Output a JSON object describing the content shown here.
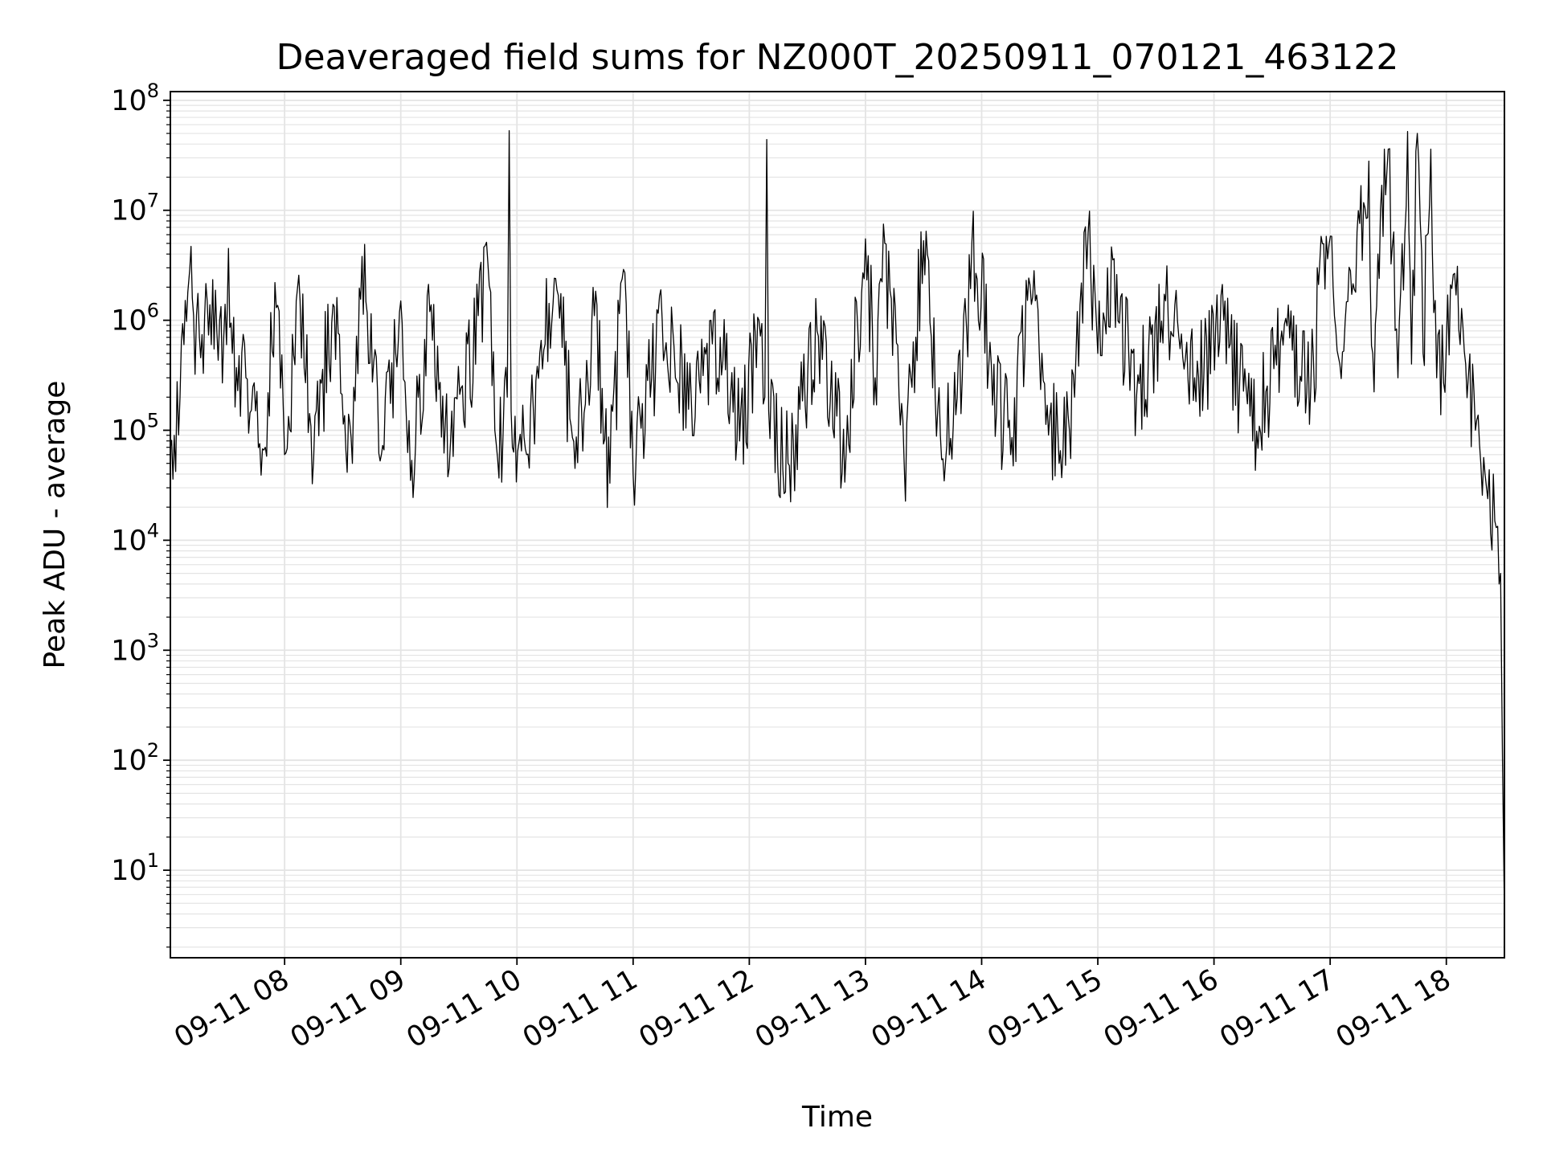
{
  "chart_data": {
    "type": "line",
    "title": "Deaveraged field sums for NZ000T_20250911_070121_463122",
    "xlabel": "Time",
    "ylabel": "Peak ADU - average",
    "yscale": "log",
    "ylim": [
      1.6,
      120000000
    ],
    "xlim": [
      "2025-09-11 07:01",
      "2025-09-11 18:30"
    ],
    "grid": true,
    "line_color": "#000000",
    "grid_color": "#e4e4e4",
    "x_ticks": [
      {
        "t": "2025-09-11 08:00",
        "label": "09-11 08"
      },
      {
        "t": "2025-09-11 09:00",
        "label": "09-11 09"
      },
      {
        "t": "2025-09-11 10:00",
        "label": "09-11 10"
      },
      {
        "t": "2025-09-11 11:00",
        "label": "09-11 11"
      },
      {
        "t": "2025-09-11 12:00",
        "label": "09-11 12"
      },
      {
        "t": "2025-09-11 13:00",
        "label": "09-11 13"
      },
      {
        "t": "2025-09-11 14:00",
        "label": "09-11 14"
      },
      {
        "t": "2025-09-11 15:00",
        "label": "09-11 15"
      },
      {
        "t": "2025-09-11 16:00",
        "label": "09-11 16"
      },
      {
        "t": "2025-09-11 17:00",
        "label": "09-11 17"
      },
      {
        "t": "2025-09-11 18:00",
        "label": "09-11 18"
      }
    ],
    "y_ticks": [
      {
        "value": 10,
        "base": "10",
        "exp": "1"
      },
      {
        "value": 100,
        "base": "10",
        "exp": "2"
      },
      {
        "value": 1000,
        "base": "10",
        "exp": "3"
      },
      {
        "value": 10000,
        "base": "10",
        "exp": "4"
      },
      {
        "value": 100000,
        "base": "10",
        "exp": "5"
      },
      {
        "value": 1000000,
        "base": "10",
        "exp": "6"
      },
      {
        "value": 10000000,
        "base": "10",
        "exp": "7"
      },
      {
        "value": 100000000,
        "base": "10",
        "exp": "8"
      }
    ],
    "series": [
      {
        "points": [
          [
            "2025-09-11 07:01",
            70000
          ],
          [
            "2025-09-11 07:03",
            90000
          ],
          [
            "2025-09-11 07:06",
            200000
          ],
          [
            "2025-09-11 07:08",
            600000
          ],
          [
            "2025-09-11 07:10",
            1800000
          ],
          [
            "2025-09-11 07:11",
            2900000
          ],
          [
            "2025-09-11 07:13",
            1100000
          ],
          [
            "2025-09-11 07:16",
            700000
          ],
          [
            "2025-09-11 07:20",
            1500000
          ],
          [
            "2025-09-11 07:25",
            800000
          ],
          [
            "2025-09-11 07:30",
            600000
          ],
          [
            "2025-09-11 07:31",
            4500000
          ],
          [
            "2025-09-11 07:33",
            500000
          ],
          [
            "2025-09-11 07:40",
            300000
          ],
          [
            "2025-09-11 07:45",
            150000
          ],
          [
            "2025-09-11 07:50",
            70000
          ],
          [
            "2025-09-11 07:55",
            2200000
          ],
          [
            "2025-09-11 08:00",
            60000
          ],
          [
            "2025-09-11 08:08",
            1500000
          ],
          [
            "2025-09-11 08:15",
            55000
          ],
          [
            "2025-09-11 08:25",
            1400000
          ],
          [
            "2025-09-11 08:35",
            50000
          ],
          [
            "2025-09-11 08:40",
            3800000
          ],
          [
            "2025-09-11 08:50",
            60000
          ],
          [
            "2025-09-11 09:00",
            1500000
          ],
          [
            "2025-09-11 09:05",
            35000
          ],
          [
            "2025-09-11 09:15",
            1200000
          ],
          [
            "2025-09-11 09:25",
            45000
          ],
          [
            "2025-09-11 09:40",
            1100000
          ],
          [
            "2025-09-11 09:45",
            3300000
          ],
          [
            "2025-09-11 09:50",
            55000
          ],
          [
            "2025-09-11 09:55",
            200000
          ],
          [
            "2025-09-11 09:56",
            53000000
          ],
          [
            "2025-09-11 09:57",
            150000
          ],
          [
            "2025-09-11 10:05",
            60000
          ],
          [
            "2025-09-11 10:20",
            2400000
          ],
          [
            "2025-09-11 10:30",
            45000
          ],
          [
            "2025-09-11 10:40",
            1100000
          ],
          [
            "2025-09-11 10:48",
            33000
          ],
          [
            "2025-09-11 10:55",
            2900000
          ],
          [
            "2025-09-11 11:00",
            40000
          ],
          [
            "2025-09-11 11:15",
            1000000
          ],
          [
            "2025-09-11 11:30",
            200000
          ],
          [
            "2025-09-11 11:45",
            700000
          ],
          [
            "2025-09-11 11:55",
            80000
          ],
          [
            "2025-09-11 12:05",
            1000000
          ],
          [
            "2025-09-11 12:08",
            200000
          ],
          [
            "2025-09-11 12:09",
            44000000
          ],
          [
            "2025-09-11 12:10",
            150000
          ],
          [
            "2025-09-11 12:20",
            50000
          ],
          [
            "2025-09-11 12:35",
            800000
          ],
          [
            "2025-09-11 12:50",
            60000
          ],
          [
            "2025-09-11 13:00",
            5500000
          ],
          [
            "2025-09-11 13:05",
            300000
          ],
          [
            "2025-09-11 13:10",
            5000000
          ],
          [
            "2025-09-11 13:20",
            50000
          ],
          [
            "2025-09-11 13:30",
            5300000
          ],
          [
            "2025-09-11 13:40",
            55000
          ],
          [
            "2025-09-11 13:50",
            300000
          ],
          [
            "2025-09-11 13:55",
            5200000
          ],
          [
            "2025-09-11 14:05",
            400000
          ],
          [
            "2025-09-11 14:15",
            60000
          ],
          [
            "2025-09-11 14:25",
            2100000
          ],
          [
            "2025-09-11 14:40",
            50000
          ],
          [
            "2025-09-11 14:48",
            200000
          ],
          [
            "2025-09-11 14:55",
            6300000
          ],
          [
            "2025-09-11 15:00",
            500000
          ],
          [
            "2025-09-11 15:05",
            3000000
          ],
          [
            "2025-09-11 15:20",
            200000
          ],
          [
            "2025-09-11 15:35",
            1500000
          ],
          [
            "2025-09-11 15:50",
            300000
          ],
          [
            "2025-09-11 16:05",
            1000000
          ],
          [
            "2025-09-11 16:20",
            80000
          ],
          [
            "2025-09-11 16:35",
            800000
          ],
          [
            "2025-09-11 16:50",
            250000
          ],
          [
            "2025-09-11 16:58",
            5800000
          ],
          [
            "2025-09-11 17:05",
            400000
          ],
          [
            "2025-09-11 17:20",
            28000000
          ],
          [
            "2025-09-11 17:22",
            500000
          ],
          [
            "2025-09-11 17:30",
            36000000
          ],
          [
            "2025-09-11 17:35",
            300000
          ],
          [
            "2025-09-11 17:40",
            52000000
          ],
          [
            "2025-09-11 17:42",
            400000
          ],
          [
            "2025-09-11 17:45",
            50000000
          ],
          [
            "2025-09-11 17:48",
            500000
          ],
          [
            "2025-09-11 17:52",
            36000000
          ],
          [
            "2025-09-11 17:55",
            300000
          ],
          [
            "2025-09-11 18:00",
            600000
          ],
          [
            "2025-09-11 18:05",
            1700000
          ],
          [
            "2025-09-11 18:10",
            400000
          ],
          [
            "2025-09-11 18:15",
            100000
          ],
          [
            "2025-09-11 18:20",
            40000
          ],
          [
            "2025-09-11 18:25",
            15000
          ],
          [
            "2025-09-11 18:28",
            5000
          ],
          [
            "2025-09-11 18:29",
            100
          ],
          [
            "2025-09-11 18:30",
            4
          ]
        ]
      }
    ]
  }
}
